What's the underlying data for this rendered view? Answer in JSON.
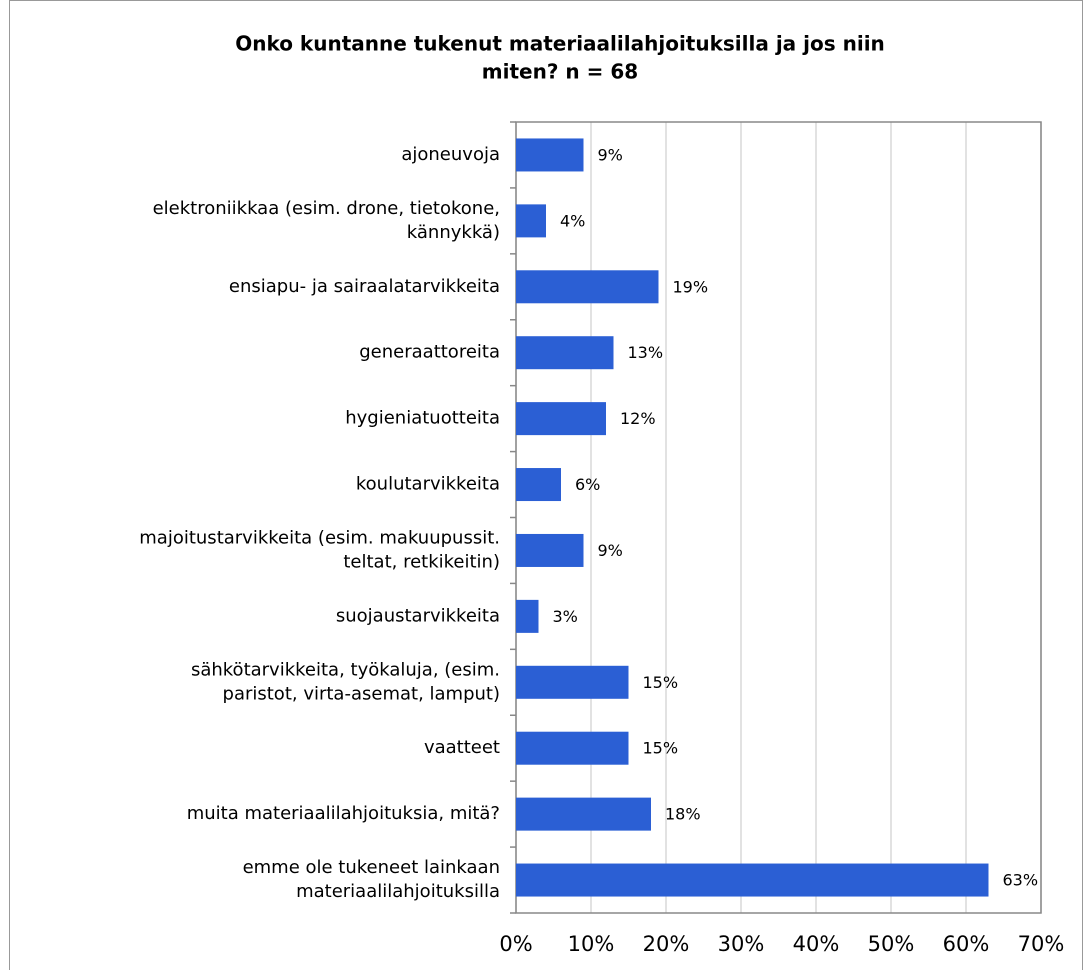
{
  "chart_data": {
    "type": "barh",
    "title": [
      "Onko kuntanne tukenut materiaalilahjoituksilla ja jos niin",
      "miten? n = 68"
    ],
    "categories": [
      [
        "ajoneuvoja"
      ],
      [
        "elektroniikkaa (esim. drone, tietokone,",
        "kännykkä)"
      ],
      [
        "ensiapu- ja sairaalatarvikkeita"
      ],
      [
        "generaattoreita"
      ],
      [
        "hygieniatuotteita"
      ],
      [
        "koulutarvikkeita"
      ],
      [
        "majoitustarvikkeita (esim. makuupussit.",
        "teltat, retkikeitin)"
      ],
      [
        "suojaustarvikkeita"
      ],
      [
        "sähkötarvikkeita, työkaluja, (esim.",
        "paristot, virta-asemat, lamput)"
      ],
      [
        "vaatteet"
      ],
      [
        "muita materiaalilahjoituksia, mitä?"
      ],
      [
        "emme ole tukeneet lainkaan",
        "materiaalilahjoituksilla"
      ]
    ],
    "values": [
      9,
      4,
      19,
      13,
      12,
      6,
      9,
      3,
      15,
      15,
      18,
      63
    ],
    "value_labels": [
      "9%",
      "4%",
      "19%",
      "13%",
      "12%",
      "6%",
      "9%",
      "3%",
      "15%",
      "15%",
      "18%",
      "63%"
    ],
    "color": "#2b5fd4",
    "xlim": [
      0,
      70
    ],
    "xticks": [
      {
        "value": 0,
        "label": "0%"
      },
      {
        "value": 10,
        "label": "10%"
      },
      {
        "value": 20,
        "label": "20%"
      },
      {
        "value": 30,
        "label": "30%"
      },
      {
        "value": 40,
        "label": "40%"
      },
      {
        "value": 50,
        "label": "50%"
      },
      {
        "value": 60,
        "label": "60%"
      },
      {
        "value": 70,
        "label": "70%"
      }
    ],
    "grid": true
  }
}
